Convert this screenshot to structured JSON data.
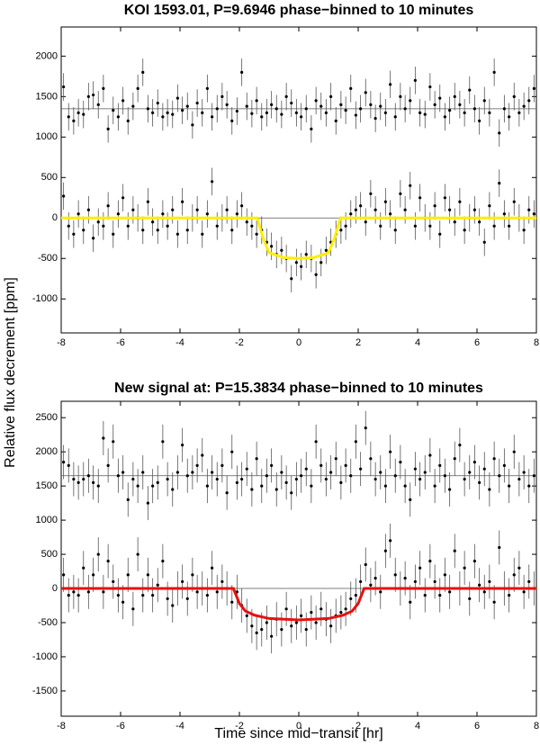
{
  "chart_data": [
    {
      "type": "scatter",
      "title": "KOI 1593.01, P=9.6946 phase−binned to 10 minutes",
      "ylabel": "Relative flux decrement [ppm]",
      "xlim": [
        -8,
        8
      ],
      "xticks": [
        -8,
        -6,
        -4,
        -2,
        0,
        2,
        4,
        6,
        8
      ],
      "ylim": [
        -1420,
        2360
      ],
      "yticks": [
        -1000,
        -500,
        0,
        500,
        1000,
        1500,
        2000
      ],
      "hlines": [
        1350,
        0
      ],
      "hline_color": "#555555",
      "x": [
        -7.92,
        -7.75,
        -7.58,
        -7.42,
        -7.25,
        -7.08,
        -6.92,
        -6.75,
        -6.58,
        -6.42,
        -6.25,
        -6.08,
        -5.92,
        -5.75,
        -5.58,
        -5.42,
        -5.25,
        -5.08,
        -4.92,
        -4.75,
        -4.58,
        -4.42,
        -4.25,
        -4.08,
        -3.92,
        -3.75,
        -3.58,
        -3.42,
        -3.25,
        -3.08,
        -2.92,
        -2.75,
        -2.58,
        -2.42,
        -2.25,
        -2.08,
        -1.92,
        -1.75,
        -1.58,
        -1.42,
        -1.25,
        -1.08,
        -0.92,
        -0.75,
        -0.58,
        -0.42,
        -0.25,
        -0.08,
        0.08,
        0.25,
        0.42,
        0.58,
        0.75,
        0.92,
        1.08,
        1.25,
        1.42,
        1.58,
        1.75,
        1.92,
        2.08,
        2.25,
        2.42,
        2.58,
        2.75,
        2.92,
        3.08,
        3.25,
        3.42,
        3.58,
        3.75,
        3.92,
        4.08,
        4.25,
        4.42,
        4.58,
        4.75,
        4.92,
        5.08,
        5.25,
        5.42,
        5.58,
        5.75,
        5.92,
        6.08,
        6.25,
        6.42,
        6.58,
        6.75,
        6.92,
        7.08,
        7.25,
        7.42,
        7.58,
        7.75,
        7.92
      ],
      "series": [
        {
          "color": "#000000",
          "error": 170,
          "values": [
            1620,
            1250,
            1200,
            1300,
            1280,
            1500,
            1520,
            1400,
            1600,
            1100,
            1330,
            1250,
            1450,
            1200,
            1380,
            1600,
            1800,
            1350,
            1300,
            1420,
            1250,
            1300,
            1280,
            1480,
            1330,
            1380,
            1150,
            1420,
            1300,
            1600,
            1250,
            1350,
            1500,
            1400,
            1200,
            1320,
            1800,
            1380,
            1290,
            1450,
            1250,
            1300,
            1400,
            1350,
            1280,
            1500,
            1420,
            1300,
            1250,
            1350,
            1100,
            1450,
            1380,
            1300,
            1500,
            1200,
            1400,
            1330,
            1600,
            1270,
            1350,
            1550,
            1400,
            1230,
            1380,
            1300,
            1650,
            1250,
            1500,
            1350,
            1450,
            1700,
            1300,
            1280,
            1620,
            1400,
            1480,
            1250,
            1330,
            1500,
            1400,
            1300,
            1580,
            1350,
            1200,
            1450,
            1300,
            1800,
            1050,
            1350,
            1250,
            1500,
            1300,
            1380,
            1450,
            1600
          ]
        },
        {
          "color": "#000000",
          "error": 170,
          "values": [
            270,
            -100,
            -200,
            50,
            -150,
            100,
            -250,
            -50,
            -100,
            150,
            -200,
            50,
            250,
            -100,
            100,
            0,
            -150,
            200,
            -50,
            -150,
            50,
            -100,
            100,
            -200,
            200,
            -150,
            0,
            100,
            -200,
            50,
            450,
            -100,
            0,
            100,
            -150,
            50,
            150,
            -50,
            -100,
            -200,
            -150,
            -300,
            -350,
            -450,
            -400,
            -500,
            -750,
            -550,
            -600,
            -450,
            -500,
            -700,
            -550,
            -400,
            -300,
            -200,
            -150,
            -100,
            50,
            100,
            150,
            -50,
            300,
            100,
            -100,
            200,
            50,
            -150,
            300,
            100,
            400,
            -100,
            250,
            0,
            -100,
            150,
            -200,
            250,
            100,
            -50,
            200,
            -150,
            0,
            100,
            -50,
            -300,
            150,
            -100,
            430,
            50,
            -100,
            200,
            0,
            -150,
            100,
            50
          ]
        }
      ],
      "model": {
        "color": "#ffee00",
        "x": [
          -8,
          -1.4,
          -1.2,
          -1,
          -0.5,
          0,
          0.5,
          1,
          1.2,
          1.4,
          8
        ],
        "values": [
          0,
          0,
          -250,
          -430,
          -490,
          -500,
          -490,
          -430,
          -250,
          0,
          0
        ]
      }
    },
    {
      "type": "scatter",
      "title": "New signal at: P=15.3834 phase−binned to 10 minutes",
      "xlabel": "Time since mid−transit [hr]",
      "xlim": [
        -8,
        8
      ],
      "xticks": [
        -8,
        -6,
        -4,
        -2,
        0,
        2,
        4,
        6,
        8
      ],
      "ylim": [
        -1870,
        2740
      ],
      "yticks": [
        -1500,
        -1000,
        -500,
        0,
        500,
        1000,
        1500,
        2000,
        2500
      ],
      "hlines": [
        1650,
        0
      ],
      "hline_color": "#555555",
      "x": [
        -7.92,
        -7.75,
        -7.58,
        -7.42,
        -7.25,
        -7.08,
        -6.92,
        -6.75,
        -6.58,
        -6.42,
        -6.25,
        -6.08,
        -5.92,
        -5.75,
        -5.58,
        -5.42,
        -5.25,
        -5.08,
        -4.92,
        -4.75,
        -4.58,
        -4.42,
        -4.25,
        -4.08,
        -3.92,
        -3.75,
        -3.58,
        -3.42,
        -3.25,
        -3.08,
        -2.92,
        -2.75,
        -2.58,
        -2.42,
        -2.25,
        -2.08,
        -1.92,
        -1.75,
        -1.58,
        -1.42,
        -1.25,
        -1.08,
        -0.92,
        -0.75,
        -0.58,
        -0.42,
        -0.25,
        -0.08,
        0.08,
        0.25,
        0.42,
        0.58,
        0.75,
        0.92,
        1.08,
        1.25,
        1.42,
        1.58,
        1.75,
        1.92,
        2.08,
        2.25,
        2.42,
        2.58,
        2.75,
        2.92,
        3.08,
        3.25,
        3.42,
        3.58,
        3.75,
        3.92,
        4.08,
        4.25,
        4.42,
        4.58,
        4.75,
        4.92,
        5.08,
        5.25,
        5.42,
        5.58,
        5.75,
        5.92,
        6.08,
        6.25,
        6.42,
        6.58,
        6.75,
        6.92,
        7.08,
        7.25,
        7.42,
        7.58,
        7.75,
        7.92
      ],
      "series": [
        {
          "color": "#000000",
          "error": 250,
          "values": [
            1850,
            1800,
            1600,
            1550,
            1600,
            1650,
            1550,
            1500,
            2200,
            1800,
            2150,
            1650,
            1700,
            1300,
            1600,
            1500,
            1700,
            1250,
            1500,
            1550,
            2150,
            1600,
            1450,
            1700,
            2100,
            1650,
            1700,
            1800,
            1950,
            1500,
            1700,
            1600,
            1800,
            1400,
            2000,
            1550,
            1600,
            1750,
            1450,
            1900,
            1500,
            1650,
            1800,
            1450,
            1700,
            1550,
            1400,
            1600,
            1650,
            1750,
            1500,
            2150,
            1800,
            1600,
            1700,
            1900,
            1550,
            1800,
            1650,
            2150,
            1750,
            2350,
            1900,
            1600,
            1700,
            1500,
            2000,
            1650,
            1850,
            1500,
            1300,
            1750,
            1600,
            1700,
            1950,
            1500,
            1800,
            1650,
            1450,
            1900,
            2100,
            1600,
            1700,
            1850,
            1550,
            1750,
            1450,
            1900,
            1650,
            1800,
            1500,
            2000,
            1600,
            1700,
            1500,
            1650
          ]
        },
        {
          "color": "#000000",
          "error": 250,
          "values": [
            200,
            -100,
            -50,
            -100,
            300,
            -50,
            200,
            500,
            -50,
            400,
            100,
            -100,
            -200,
            200,
            -300,
            500,
            -100,
            200,
            -100,
            50,
            400,
            -150,
            -250,
            0,
            100,
            -150,
            200,
            -50,
            0,
            -100,
            300,
            -50,
            100,
            0,
            -200,
            -50,
            -250,
            -400,
            -550,
            -650,
            -600,
            -500,
            -700,
            -450,
            -600,
            -300,
            -550,
            -500,
            -400,
            -600,
            -350,
            -500,
            -300,
            -450,
            -550,
            -400,
            -350,
            -300,
            -150,
            -100,
            100,
            350,
            50,
            150,
            -50,
            550,
            700,
            200,
            0,
            150,
            -200,
            100,
            300,
            -100,
            400,
            100,
            -100,
            200,
            -50,
            550,
            0,
            300,
            -150,
            400,
            50,
            -50,
            100,
            -200,
            600,
            0,
            -100,
            200,
            300,
            -50,
            100,
            0
          ]
        }
      ],
      "model": {
        "color": "#e81010",
        "x": [
          -8,
          -2.2,
          -2,
          -1.8,
          -1.5,
          -1,
          0,
          1,
          1.5,
          1.8,
          2,
          2.2,
          8
        ],
        "values": [
          0,
          0,
          -220,
          -330,
          -390,
          -440,
          -460,
          -440,
          -390,
          -330,
          -220,
          0,
          0
        ]
      }
    }
  ]
}
